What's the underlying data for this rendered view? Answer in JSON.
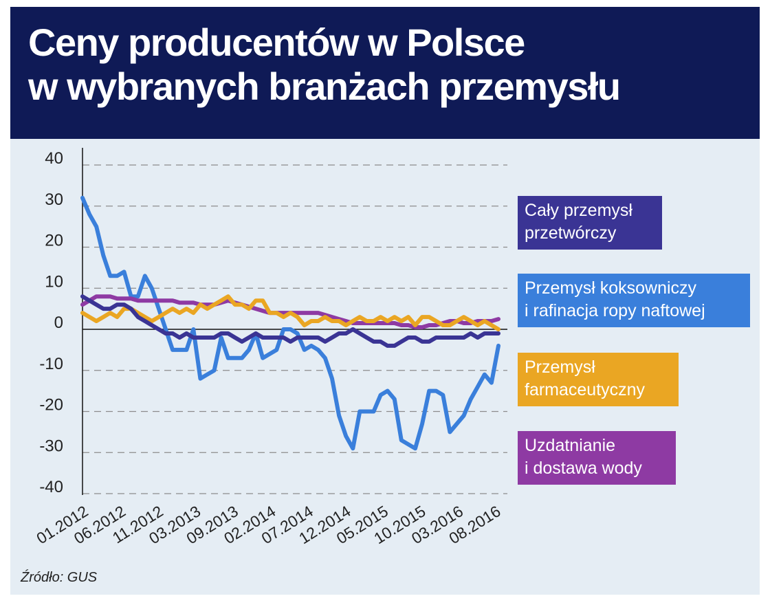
{
  "title": {
    "line1": "Ceny producentów w Polsce",
    "line2": "w wybranych branżach przemysłu"
  },
  "source": "Źródło: GUS",
  "colors": {
    "header_bg": "#0f1a56",
    "card_bg": "#e5edf4",
    "manufacturing": "#3a3494",
    "coke_refining": "#3a7fdb",
    "pharma": "#eaa623",
    "water": "#8e3aa3"
  },
  "legend": [
    {
      "line1": "Cały przemysł",
      "line2": "przetwórczy",
      "color": "#3a3494"
    },
    {
      "line1": "Przemysł koksowniczy",
      "line2": "i rafinacja ropy naftowej",
      "color": "#3a7fdb"
    },
    {
      "line1": "Przemysł",
      "line2": "farmaceutyczny",
      "color": "#eaa623"
    },
    {
      "line1": "Uzdatnianie",
      "line2": "i dostawa wody",
      "color": "#8e3aa3"
    }
  ],
  "chart_data": {
    "type": "line",
    "y_ticks": [
      "40",
      "30",
      "20",
      "10",
      "0",
      "-10",
      "-20",
      "-30",
      "-40"
    ],
    "ylim": [
      -40,
      40
    ],
    "x_ticks": [
      "01.2012",
      "06.2012",
      "11.2012",
      "03.2013",
      "09.2013",
      "02.2014",
      "07.2014",
      "12.2014",
      "05.2015",
      "10.2015",
      "03.2016",
      "08.2016"
    ],
    "grid": "horizontal dashed",
    "series": [
      {
        "name": "Przemysł koksowniczy i rafinacja ropy naftowej",
        "color": "#3a7fdb",
        "values": [
          32,
          28,
          25,
          18,
          13,
          13,
          14,
          8,
          8,
          13,
          10,
          5,
          0,
          -5,
          -5,
          -5,
          0,
          -12,
          -11,
          -10,
          -2,
          -7,
          -7,
          -7,
          -5,
          -1,
          -7,
          -6,
          -5,
          0,
          0,
          -1,
          -5,
          -4,
          -5,
          -7,
          -12,
          -21,
          -26,
          -29,
          -20,
          -20,
          -20,
          -16,
          -15,
          -17,
          -27,
          -28,
          -29,
          -23,
          -15,
          -15,
          -16,
          -25,
          -23,
          -21,
          -17,
          -14,
          -11,
          -13,
          -4
        ]
      },
      {
        "name": "Uzdatnianie i dostawa wody",
        "color": "#8e3aa3",
        "values": [
          6,
          7,
          8,
          8,
          8,
          7.5,
          7.5,
          7.5,
          7,
          7,
          7,
          7,
          7,
          7,
          6.5,
          6.5,
          6.5,
          6,
          6,
          6,
          6.5,
          7,
          6.5,
          6,
          5.5,
          5,
          4.5,
          4,
          4,
          4,
          4,
          4,
          4,
          4,
          4,
          3.5,
          3,
          2.5,
          2,
          1.5,
          1.5,
          1.5,
          1.5,
          1.5,
          1.5,
          1.5,
          1,
          1,
          0.5,
          0.5,
          1,
          1,
          1.5,
          2,
          2,
          1.5,
          1.5,
          2,
          2,
          2,
          2.5
        ]
      },
      {
        "name": "Przemysł farmaceutyczny",
        "color": "#eaa623",
        "values": [
          4,
          3,
          2,
          3,
          4,
          3,
          5,
          5,
          4,
          3,
          2,
          3,
          4,
          5,
          4,
          5,
          4,
          6,
          5,
          6,
          7,
          8,
          6,
          6,
          5,
          7,
          7,
          4,
          4,
          3,
          4,
          3,
          1,
          2,
          2,
          3,
          2,
          2,
          1,
          2,
          3,
          2,
          2,
          3,
          2,
          3,
          2,
          3,
          1,
          3,
          3,
          2,
          1,
          1,
          2,
          3,
          2,
          1,
          2,
          1,
          0
        ]
      },
      {
        "name": "Cały przemysł przetwórczy",
        "color": "#3a3494",
        "values": [
          8,
          7,
          6,
          5,
          5,
          6,
          6,
          5,
          3,
          2,
          1,
          0,
          -1,
          -1,
          -2,
          -1,
          -2,
          -2,
          -2,
          -2,
          -1,
          -1,
          -2,
          -3,
          -2,
          -1,
          -2,
          -2,
          -2,
          -2,
          -3,
          -2,
          -2,
          -2,
          -2,
          -3,
          -2,
          -1,
          -1,
          0,
          -1,
          -2,
          -3,
          -3,
          -4,
          -4,
          -3,
          -2,
          -2,
          -3,
          -3,
          -2,
          -2,
          -2,
          -2,
          -2,
          -1,
          -2,
          -1,
          -1,
          -1
        ]
      }
    ]
  }
}
